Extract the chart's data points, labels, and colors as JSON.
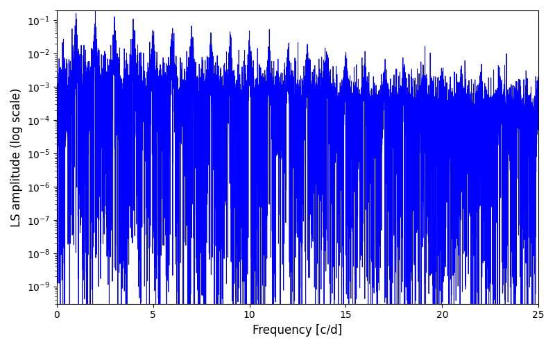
{
  "title": "",
  "xlabel": "Frequency [c/d]",
  "ylabel": "LS amplitude (log scale)",
  "xlim": [
    0,
    25
  ],
  "ylim": [
    3e-10,
    0.2
  ],
  "line_color": "#0000ff",
  "line_width": 0.7,
  "background_color": "#ffffff",
  "figsize": [
    8.0,
    5.0
  ],
  "dpi": 100,
  "freq_max": 25.0,
  "n_points": 15000,
  "seed": 42
}
